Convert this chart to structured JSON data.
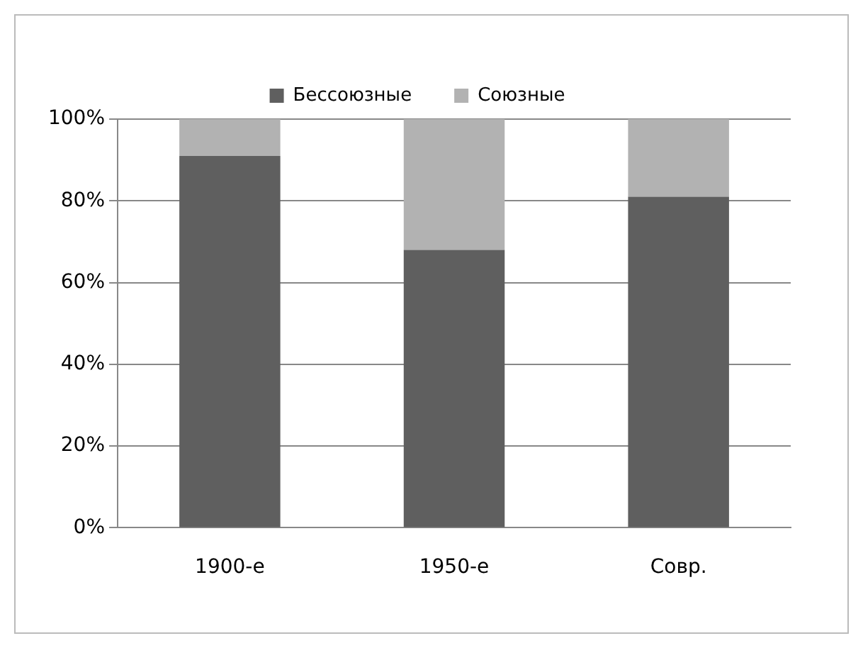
{
  "chart_data": {
    "type": "bar",
    "stacked": true,
    "categories": [
      "1900-е",
      "1950-е",
      "Совр."
    ],
    "series": [
      {
        "name": "Бессоюзные",
        "color": "#5f5f5f",
        "values": [
          91,
          68,
          81
        ]
      },
      {
        "name": "Союзные",
        "color": "#b2b2b2",
        "values": [
          9,
          32,
          19
        ]
      }
    ],
    "ylim": [
      0,
      100
    ],
    "yticks": [
      {
        "value": 0,
        "label": "0%"
      },
      {
        "value": 20,
        "label": "20%"
      },
      {
        "value": 40,
        "label": "40%"
      },
      {
        "value": 60,
        "label": "60%"
      },
      {
        "value": 80,
        "label": "80%"
      },
      {
        "value": 100,
        "label": "100%"
      }
    ],
    "grid": "y",
    "legend": "top"
  }
}
